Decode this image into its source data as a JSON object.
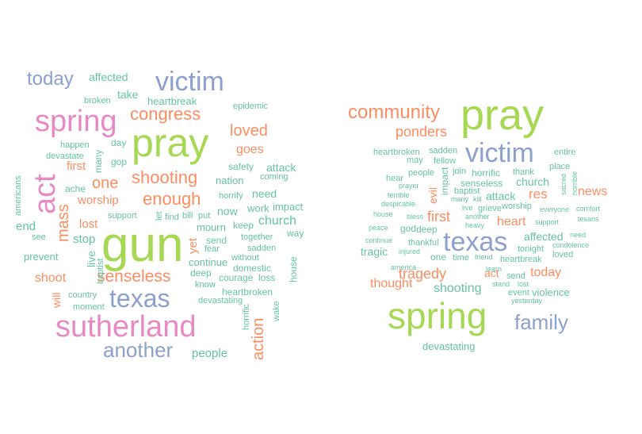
{
  "palette": {
    "green": "#a6d854",
    "blue": "#8da0cb",
    "pink": "#e78ac3",
    "orange": "#fc8d62",
    "teal": "#66c2a5"
  },
  "clouds": [
    {
      "id": "left",
      "words": [
        {
          "text": "gun",
          "color": "green"
        },
        {
          "text": "pray",
          "color": "green"
        },
        {
          "text": "sutherland",
          "color": "pink"
        },
        {
          "text": "spring",
          "color": "pink"
        },
        {
          "text": "act",
          "color": "pink"
        },
        {
          "text": "victim",
          "color": "blue"
        },
        {
          "text": "texas",
          "color": "blue"
        },
        {
          "text": "another",
          "color": "blue"
        },
        {
          "text": "today",
          "color": "blue"
        },
        {
          "text": "congress",
          "color": "orange"
        },
        {
          "text": "shooting",
          "color": "orange"
        },
        {
          "text": "enough",
          "color": "orange"
        },
        {
          "text": "senseless",
          "color": "orange"
        },
        {
          "text": "loved",
          "color": "orange"
        },
        {
          "text": "one",
          "color": "orange"
        },
        {
          "text": "mass",
          "color": "orange"
        },
        {
          "text": "goes",
          "color": "orange"
        },
        {
          "text": "action",
          "color": "orange"
        },
        {
          "text": "shoot",
          "color": "orange"
        },
        {
          "text": "worship",
          "color": "orange"
        },
        {
          "text": "lost",
          "color": "orange"
        },
        {
          "text": "first",
          "color": "orange"
        },
        {
          "text": "yet",
          "color": "orange"
        },
        {
          "text": "will",
          "color": "orange"
        },
        {
          "text": "affected",
          "color": "teal"
        },
        {
          "text": "take",
          "color": "teal"
        },
        {
          "text": "heartbreak",
          "color": "teal"
        },
        {
          "text": "broken",
          "color": "teal"
        },
        {
          "text": "epidemic",
          "color": "teal"
        },
        {
          "text": "happen",
          "color": "teal"
        },
        {
          "text": "devastate",
          "color": "teal"
        },
        {
          "text": "day",
          "color": "teal"
        },
        {
          "text": "many",
          "color": "teal"
        },
        {
          "text": "gop",
          "color": "teal"
        },
        {
          "text": "safety",
          "color": "teal"
        },
        {
          "text": "attack",
          "color": "teal"
        },
        {
          "text": "coming",
          "color": "teal"
        },
        {
          "text": "nation",
          "color": "teal"
        },
        {
          "text": "ache",
          "color": "teal"
        },
        {
          "text": "americans",
          "color": "teal"
        },
        {
          "text": "horrify",
          "color": "teal"
        },
        {
          "text": "need",
          "color": "teal"
        },
        {
          "text": "now",
          "color": "teal"
        },
        {
          "text": "work",
          "color": "teal"
        },
        {
          "text": "impact",
          "color": "teal"
        },
        {
          "text": "church",
          "color": "teal"
        },
        {
          "text": "support",
          "color": "teal"
        },
        {
          "text": "let",
          "color": "teal"
        },
        {
          "text": "find",
          "color": "teal"
        },
        {
          "text": "bill",
          "color": "teal"
        },
        {
          "text": "put",
          "color": "teal"
        },
        {
          "text": "mourn",
          "color": "teal"
        },
        {
          "text": "keep",
          "color": "teal"
        },
        {
          "text": "way",
          "color": "teal"
        },
        {
          "text": "end",
          "color": "teal"
        },
        {
          "text": "see",
          "color": "teal"
        },
        {
          "text": "stop",
          "color": "teal"
        },
        {
          "text": "send",
          "color": "teal"
        },
        {
          "text": "together",
          "color": "teal"
        },
        {
          "text": "fear",
          "color": "teal"
        },
        {
          "text": "sadden",
          "color": "teal"
        },
        {
          "text": "prevent",
          "color": "teal"
        },
        {
          "text": "live",
          "color": "teal"
        },
        {
          "text": "continue",
          "color": "teal"
        },
        {
          "text": "without",
          "color": "teal"
        },
        {
          "text": "baptist",
          "color": "teal"
        },
        {
          "text": "deep",
          "color": "teal"
        },
        {
          "text": "domestic",
          "color": "teal"
        },
        {
          "text": "house",
          "color": "teal"
        },
        {
          "text": "courage",
          "color": "teal"
        },
        {
          "text": "loss",
          "color": "teal"
        },
        {
          "text": "know",
          "color": "teal"
        },
        {
          "text": "heartbroken",
          "color": "teal"
        },
        {
          "text": "country",
          "color": "teal"
        },
        {
          "text": "devastating",
          "color": "teal"
        },
        {
          "text": "wake",
          "color": "teal"
        },
        {
          "text": "moment",
          "color": "teal"
        },
        {
          "text": "horrific",
          "color": "teal"
        },
        {
          "text": "people",
          "color": "teal"
        }
      ]
    },
    {
      "id": "right",
      "words": [
        {
          "text": "pray",
          "color": "green"
        },
        {
          "text": "spring",
          "color": "green"
        },
        {
          "text": "texas",
          "color": "blue"
        },
        {
          "text": "victim",
          "color": "blue"
        },
        {
          "text": "family",
          "color": "blue"
        },
        {
          "text": "community",
          "color": "orange"
        },
        {
          "text": "ponders",
          "color": "orange"
        },
        {
          "text": "first",
          "color": "orange"
        },
        {
          "text": "tragedy",
          "color": "orange"
        },
        {
          "text": "thought",
          "color": "orange"
        },
        {
          "text": "res",
          "color": "orange"
        },
        {
          "text": "news",
          "color": "orange"
        },
        {
          "text": "heart",
          "color": "orange"
        },
        {
          "text": "act",
          "color": "orange"
        },
        {
          "text": "today",
          "color": "orange"
        },
        {
          "text": "evil",
          "color": "orange"
        },
        {
          "text": "heartbroken",
          "color": "teal"
        },
        {
          "text": "sadden",
          "color": "teal"
        },
        {
          "text": "may",
          "color": "teal"
        },
        {
          "text": "fellow",
          "color": "teal"
        },
        {
          "text": "entire",
          "color": "teal"
        },
        {
          "text": "place",
          "color": "teal"
        },
        {
          "text": "hear",
          "color": "teal"
        },
        {
          "text": "people",
          "color": "teal"
        },
        {
          "text": "join",
          "color": "teal"
        },
        {
          "text": "impact",
          "color": "teal"
        },
        {
          "text": "horrific",
          "color": "teal"
        },
        {
          "text": "thank",
          "color": "teal"
        },
        {
          "text": "sacred",
          "color": "teal"
        },
        {
          "text": "horrible",
          "color": "teal"
        },
        {
          "text": "prayer",
          "color": "teal"
        },
        {
          "text": "senseless",
          "color": "teal"
        },
        {
          "text": "church",
          "color": "teal"
        },
        {
          "text": "terrible",
          "color": "teal"
        },
        {
          "text": "baptist",
          "color": "teal"
        },
        {
          "text": "attack",
          "color": "teal"
        },
        {
          "text": "despicable",
          "color": "teal"
        },
        {
          "text": "many",
          "color": "teal"
        },
        {
          "text": "kill",
          "color": "teal"
        },
        {
          "text": "live",
          "color": "teal"
        },
        {
          "text": "grieve",
          "color": "teal"
        },
        {
          "text": "worship",
          "color": "teal"
        },
        {
          "text": "everyone",
          "color": "teal"
        },
        {
          "text": "comfort",
          "color": "teal"
        },
        {
          "text": "house",
          "color": "teal"
        },
        {
          "text": "bless",
          "color": "teal"
        },
        {
          "text": "another",
          "color": "teal"
        },
        {
          "text": "heavy",
          "color": "teal"
        },
        {
          "text": "support",
          "color": "teal"
        },
        {
          "text": "texans",
          "color": "teal"
        },
        {
          "text": "peace",
          "color": "teal"
        },
        {
          "text": "god",
          "color": "teal"
        },
        {
          "text": "deep",
          "color": "teal"
        },
        {
          "text": "affected",
          "color": "teal"
        },
        {
          "text": "need",
          "color": "teal"
        },
        {
          "text": "continue",
          "color": "teal"
        },
        {
          "text": "thankful",
          "color": "teal"
        },
        {
          "text": "condolence",
          "color": "teal"
        },
        {
          "text": "tragic",
          "color": "teal"
        },
        {
          "text": "injured",
          "color": "teal"
        },
        {
          "text": "one",
          "color": "teal"
        },
        {
          "text": "time",
          "color": "teal"
        },
        {
          "text": "friend",
          "color": "teal"
        },
        {
          "text": "heartbreak",
          "color": "teal"
        },
        {
          "text": "loved",
          "color": "teal"
        },
        {
          "text": "america",
          "color": "teal"
        },
        {
          "text": "learn",
          "color": "teal"
        },
        {
          "text": "stand",
          "color": "teal"
        },
        {
          "text": "lost",
          "color": "teal"
        },
        {
          "text": "send",
          "color": "teal"
        },
        {
          "text": "shooting",
          "color": "teal"
        },
        {
          "text": "event",
          "color": "teal"
        },
        {
          "text": "violence",
          "color": "teal"
        },
        {
          "text": "yesterday",
          "color": "teal"
        },
        {
          "text": "tonight",
          "color": "teal"
        },
        {
          "text": "devastating",
          "color": "teal"
        }
      ]
    }
  ]
}
